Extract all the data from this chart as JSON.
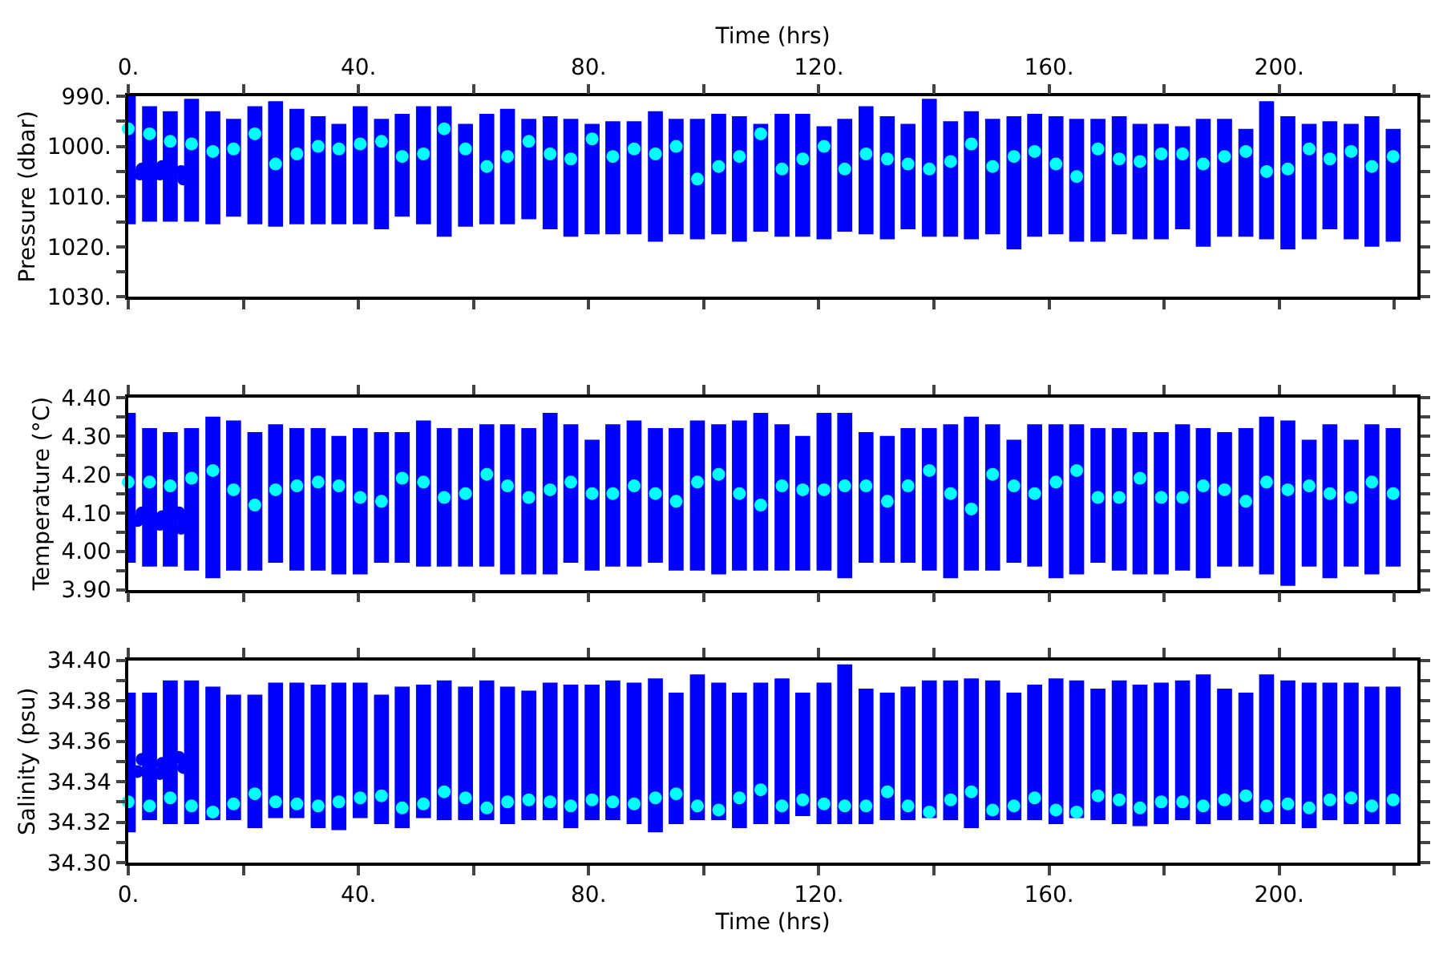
{
  "chart_data": [
    {
      "type": "bar",
      "xlabel": "Time (hrs)",
      "ylabel": "Pressure (dbar)",
      "marker": "circle",
      "xlim": [
        0,
        224
      ],
      "xticks": [
        {
          "value": 0,
          "label": "0."
        },
        {
          "value": 20,
          "label": null
        },
        {
          "value": 40,
          "label": "40."
        },
        {
          "value": 60,
          "label": null
        },
        {
          "value": 80,
          "label": "80."
        },
        {
          "value": 100,
          "label": null
        },
        {
          "value": 120,
          "label": "120."
        },
        {
          "value": 140,
          "label": null
        },
        {
          "value": 160,
          "label": "160."
        },
        {
          "value": 180,
          "label": null
        },
        {
          "value": 200,
          "label": "200."
        },
        {
          "value": 220,
          "label": null
        }
      ],
      "ylim": [
        1030,
        990
      ],
      "yticks": [
        {
          "value": 990,
          "label": "990."
        },
        {
          "value": 995,
          "label": null
        },
        {
          "value": 1000,
          "label": "1000."
        },
        {
          "value": 1005,
          "label": null
        },
        {
          "value": 1010,
          "label": "1010."
        },
        {
          "value": 1015,
          "label": null
        },
        {
          "value": 1020,
          "label": "1020."
        },
        {
          "value": 1025,
          "label": null
        },
        {
          "value": 1030,
          "label": "1030."
        }
      ],
      "x": [
        0,
        3.7,
        7.3,
        11,
        14.7,
        18.3,
        22,
        25.6,
        29.3,
        33,
        36.6,
        40.3,
        44,
        47.6,
        51.3,
        54.9,
        58.6,
        62.3,
        65.9,
        69.6,
        73.3,
        76.9,
        80.6,
        84.2,
        87.9,
        91.6,
        95.2,
        98.9,
        102.6,
        106.2,
        109.9,
        113.6,
        117.2,
        120.9,
        124.5,
        128.2,
        131.9,
        135.5,
        139.2,
        142.9,
        146.5,
        150.2,
        153.9,
        157.5,
        161.2,
        164.8,
        168.5,
        172.2,
        175.8,
        179.5,
        183.2,
        186.8,
        190.5,
        194.2,
        197.8,
        201.5,
        205.2,
        208.8,
        212.5,
        216.1,
        219.8
      ],
      "series": [
        {
          "color": "#0000ff",
          "base": [
            990,
            992,
            993,
            990.5,
            993,
            994.5,
            992,
            991,
            992.5,
            994,
            995.5,
            992,
            994.5,
            993.5,
            992,
            992,
            995.5,
            993.5,
            992.5,
            994.5,
            994,
            994.5,
            995.5,
            995,
            995,
            993,
            994.5,
            994.5,
            993.5,
            994,
            995.5,
            993.5,
            993.5,
            996,
            994.5,
            992,
            994,
            995.5,
            990.5,
            995,
            993,
            994.5,
            994,
            993.5,
            994,
            994.5,
            994.5,
            994,
            995.5,
            995.5,
            996,
            994.5,
            994.5,
            996.5,
            991,
            994,
            995.5,
            995,
            995.5,
            994,
            996.5
          ],
          "values": [
            25.5,
            23,
            22,
            24.5,
            22.5,
            19.5,
            23.5,
            25,
            23,
            21.5,
            20,
            23.5,
            22,
            20.5,
            23.5,
            26,
            20.5,
            22,
            23,
            20,
            22.5,
            23.5,
            22,
            22.5,
            22.5,
            26,
            23,
            24,
            24,
            25,
            21.5,
            24.5,
            24.5,
            22.5,
            22.5,
            25.5,
            24.5,
            21,
            27.5,
            23,
            25.5,
            23,
            26.5,
            24.5,
            23.5,
            24.5,
            24.5,
            23.5,
            23,
            23,
            20.5,
            25.5,
            23.5,
            21.5,
            27.5,
            26.5,
            23,
            21.5,
            23,
            26,
            22.5
          ]
        },
        {
          "type": "scatter",
          "color": "#00ffff",
          "values": [
            996.5,
            997.5,
            999,
            999.5,
            1001,
            1000.5,
            997.5,
            1003.5,
            1001.5,
            1000,
            1000.5,
            999.5,
            999,
            1002,
            1001.5,
            996.5,
            1000.5,
            1004,
            1002,
            999,
            1001.5,
            1002.5,
            998.5,
            1002,
            1000.5,
            1001.5,
            1000,
            1006.5,
            1004,
            1002,
            997.5,
            1004.5,
            1002.5,
            1000,
            1004.5,
            1001.5,
            1002.5,
            1003.5,
            1004.5,
            1003,
            999.5,
            1004,
            1002,
            1001,
            1003.5,
            1006,
            1000.5,
            1002.5,
            1003,
            1001.5,
            1001.5,
            1003.5,
            1002,
            1001,
            1005,
            1004.5,
            1000.5,
            1002.5,
            1001,
            1004,
            1002
          ]
        },
        {
          "type": "scatter",
          "color": "#0000ff",
          "x": [
            2.0,
            2.4,
            5.5,
            5.9,
            9.2,
            9.6
          ],
          "values": [
            1005.5,
            1004.5,
            1005.5,
            1004,
            1005,
            1006.5
          ]
        }
      ]
    },
    {
      "type": "bar",
      "ylabel": "Temperature (°C)",
      "marker": "circle",
      "tick_labels": "y",
      "xlim": [
        0,
        224
      ],
      "xticks": [
        {
          "value": 0,
          "label": null
        },
        {
          "value": 20,
          "label": null
        },
        {
          "value": 40,
          "label": null
        },
        {
          "value": 60,
          "label": null
        },
        {
          "value": 80,
          "label": null
        },
        {
          "value": 100,
          "label": null
        },
        {
          "value": 120,
          "label": null
        },
        {
          "value": 140,
          "label": null
        },
        {
          "value": 160,
          "label": null
        },
        {
          "value": 180,
          "label": null
        },
        {
          "value": 200,
          "label": null
        },
        {
          "value": 220,
          "label": null
        }
      ],
      "ylim": [
        3.9,
        4.4
      ],
      "yticks": [
        {
          "value": 3.9,
          "label": "3.90"
        },
        {
          "value": 3.95,
          "label": null
        },
        {
          "value": 4.0,
          "label": "4.00"
        },
        {
          "value": 4.05,
          "label": null
        },
        {
          "value": 4.1,
          "label": "4.10"
        },
        {
          "value": 4.15,
          "label": null
        },
        {
          "value": 4.2,
          "label": "4.20"
        },
        {
          "value": 4.25,
          "label": null
        },
        {
          "value": 4.3,
          "label": "4.30"
        },
        {
          "value": 4.35,
          "label": null
        },
        {
          "value": 4.4,
          "label": "4.40"
        }
      ],
      "x": [
        0,
        3.7,
        7.3,
        11,
        14.7,
        18.3,
        22,
        25.6,
        29.3,
        33,
        36.6,
        40.3,
        44,
        47.6,
        51.3,
        54.9,
        58.6,
        62.3,
        65.9,
        69.6,
        73.3,
        76.9,
        80.6,
        84.2,
        87.9,
        91.6,
        95.2,
        98.9,
        102.6,
        106.2,
        109.9,
        113.6,
        117.2,
        120.9,
        124.5,
        128.2,
        131.9,
        135.5,
        139.2,
        142.9,
        146.5,
        150.2,
        153.9,
        157.5,
        161.2,
        164.8,
        168.5,
        172.2,
        175.8,
        179.5,
        183.2,
        186.8,
        190.5,
        194.2,
        197.8,
        201.5,
        205.2,
        208.8,
        212.5,
        216.1,
        219.8
      ],
      "series": [
        {
          "color": "#0000ff",
          "base": [
            3.97,
            3.96,
            3.96,
            3.95,
            3.93,
            3.95,
            3.95,
            3.97,
            3.95,
            3.95,
            3.94,
            3.94,
            3.97,
            3.97,
            3.96,
            3.96,
            3.96,
            3.96,
            3.94,
            3.94,
            3.94,
            3.97,
            3.95,
            3.96,
            3.96,
            3.97,
            3.95,
            3.95,
            3.94,
            3.95,
            3.95,
            3.95,
            3.95,
            3.95,
            3.93,
            3.97,
            3.97,
            3.97,
            3.95,
            3.93,
            3.95,
            3.95,
            3.97,
            3.96,
            3.93,
            3.94,
            3.97,
            3.95,
            3.94,
            3.94,
            3.95,
            3.93,
            3.96,
            3.96,
            3.94,
            3.91,
            3.96,
            3.93,
            3.96,
            3.94,
            3.96
          ],
          "values": [
            0.39,
            0.36,
            0.35,
            0.37,
            0.42,
            0.39,
            0.36,
            0.36,
            0.37,
            0.37,
            0.36,
            0.38,
            0.34,
            0.34,
            0.38,
            0.36,
            0.36,
            0.37,
            0.39,
            0.38,
            0.42,
            0.36,
            0.34,
            0.37,
            0.38,
            0.35,
            0.37,
            0.39,
            0.39,
            0.39,
            0.41,
            0.38,
            0.35,
            0.41,
            0.43,
            0.34,
            0.33,
            0.35,
            0.37,
            0.4,
            0.4,
            0.38,
            0.32,
            0.37,
            0.4,
            0.39,
            0.35,
            0.37,
            0.37,
            0.37,
            0.38,
            0.39,
            0.35,
            0.36,
            0.41,
            0.43,
            0.33,
            0.4,
            0.33,
            0.39,
            0.36
          ]
        },
        {
          "type": "scatter",
          "color": "#00ffff",
          "values": [
            4.18,
            4.18,
            4.17,
            4.19,
            4.21,
            4.16,
            4.12,
            4.16,
            4.17,
            4.18,
            4.17,
            4.14,
            4.13,
            4.19,
            4.18,
            4.14,
            4.15,
            4.2,
            4.17,
            4.14,
            4.16,
            4.18,
            4.15,
            4.15,
            4.17,
            4.15,
            4.13,
            4.18,
            4.2,
            4.15,
            4.12,
            4.17,
            4.16,
            4.16,
            4.17,
            4.17,
            4.13,
            4.17,
            4.21,
            4.15,
            4.11,
            4.2,
            4.17,
            4.15,
            4.18,
            4.21,
            4.14,
            4.14,
            4.19,
            4.14,
            4.14,
            4.17,
            4.16,
            4.13,
            4.18,
            4.16,
            4.17,
            4.15,
            4.14,
            4.18,
            4.15
          ]
        },
        {
          "type": "scatter",
          "color": "#0000ff",
          "x": [
            1.6,
            2.4,
            5.5,
            5.9,
            8.8,
            9.2,
            9.6
          ],
          "values": [
            4.08,
            4.1,
            4.07,
            4.09,
            4.1,
            4.06,
            4.08
          ]
        }
      ]
    },
    {
      "type": "bar",
      "xlabel": "Time (hrs)",
      "ylabel": "Salinity (psu)",
      "marker": "circle",
      "xlim": [
        0,
        224
      ],
      "xticks": [
        {
          "value": 0,
          "label": "0."
        },
        {
          "value": 20,
          "label": null
        },
        {
          "value": 40,
          "label": "40."
        },
        {
          "value": 60,
          "label": null
        },
        {
          "value": 80,
          "label": "80."
        },
        {
          "value": 100,
          "label": null
        },
        {
          "value": 120,
          "label": "120."
        },
        {
          "value": 140,
          "label": null
        },
        {
          "value": 160,
          "label": "160."
        },
        {
          "value": 180,
          "label": null
        },
        {
          "value": 200,
          "label": "200."
        },
        {
          "value": 220,
          "label": null
        }
      ],
      "ylim": [
        34.3,
        34.4
      ],
      "yticks": [
        {
          "value": 34.3,
          "label": "34.30"
        },
        {
          "value": 34.31,
          "label": null
        },
        {
          "value": 34.32,
          "label": "34.32"
        },
        {
          "value": 34.33,
          "label": null
        },
        {
          "value": 34.34,
          "label": "34.34"
        },
        {
          "value": 34.35,
          "label": null
        },
        {
          "value": 34.36,
          "label": "34.36"
        },
        {
          "value": 34.37,
          "label": null
        },
        {
          "value": 34.38,
          "label": "34.38"
        },
        {
          "value": 34.39,
          "label": null
        },
        {
          "value": 34.4,
          "label": "34.40"
        }
      ],
      "x": [
        0,
        3.7,
        7.3,
        11,
        14.7,
        18.3,
        22,
        25.6,
        29.3,
        33,
        36.6,
        40.3,
        44,
        47.6,
        51.3,
        54.9,
        58.6,
        62.3,
        65.9,
        69.6,
        73.3,
        76.9,
        80.6,
        84.2,
        87.9,
        91.6,
        95.2,
        98.9,
        102.6,
        106.2,
        109.9,
        113.6,
        117.2,
        120.9,
        124.5,
        128.2,
        131.9,
        135.5,
        139.2,
        142.9,
        146.5,
        150.2,
        153.9,
        157.5,
        161.2,
        164.8,
        168.5,
        172.2,
        175.8,
        179.5,
        183.2,
        186.8,
        190.5,
        194.2,
        197.8,
        201.5,
        205.2,
        208.8,
        212.5,
        216.1,
        219.8
      ],
      "series": [
        {
          "color": "#0000ff",
          "base": [
            34.315,
            34.321,
            34.319,
            34.319,
            34.321,
            34.321,
            34.317,
            34.322,
            34.322,
            34.317,
            34.316,
            34.322,
            34.319,
            34.317,
            34.322,
            34.321,
            34.321,
            34.321,
            34.319,
            34.321,
            34.321,
            34.317,
            34.321,
            34.321,
            34.319,
            34.315,
            34.319,
            34.321,
            34.321,
            34.317,
            34.319,
            34.319,
            34.323,
            34.319,
            34.319,
            34.319,
            34.321,
            34.321,
            34.322,
            34.321,
            34.317,
            34.321,
            34.321,
            34.321,
            34.319,
            34.322,
            34.321,
            34.319,
            34.318,
            34.319,
            34.321,
            34.319,
            34.321,
            34.321,
            34.319,
            34.319,
            34.317,
            34.321,
            34.319,
            34.319,
            34.319
          ],
          "values": [
            0.069,
            0.063,
            0.071,
            0.071,
            0.066,
            0.062,
            0.066,
            0.067,
            0.067,
            0.071,
            0.073,
            0.067,
            0.064,
            0.07,
            0.066,
            0.069,
            0.066,
            0.069,
            0.068,
            0.064,
            0.068,
            0.071,
            0.067,
            0.069,
            0.07,
            0.076,
            0.065,
            0.072,
            0.068,
            0.067,
            0.07,
            0.072,
            0.061,
            0.07,
            0.079,
            0.067,
            0.063,
            0.066,
            0.068,
            0.069,
            0.074,
            0.069,
            0.063,
            0.067,
            0.072,
            0.068,
            0.065,
            0.071,
            0.07,
            0.07,
            0.069,
            0.074,
            0.065,
            0.063,
            0.074,
            0.071,
            0.072,
            0.068,
            0.07,
            0.068,
            0.068
          ]
        },
        {
          "type": "scatter",
          "color": "#00ffff",
          "values": [
            34.33,
            34.328,
            34.332,
            34.328,
            34.325,
            34.329,
            34.334,
            34.33,
            34.329,
            34.328,
            34.33,
            34.332,
            34.333,
            34.327,
            34.329,
            34.335,
            34.332,
            34.327,
            34.33,
            34.331,
            34.33,
            34.328,
            34.331,
            34.33,
            34.329,
            34.332,
            34.334,
            34.328,
            34.326,
            34.332,
            34.336,
            34.328,
            34.331,
            34.329,
            34.328,
            34.328,
            34.335,
            34.328,
            34.325,
            34.331,
            34.335,
            34.326,
            34.328,
            34.332,
            34.326,
            34.325,
            34.333,
            34.331,
            34.327,
            34.33,
            34.33,
            34.328,
            34.331,
            34.333,
            34.328,
            34.329,
            34.327,
            34.331,
            34.332,
            34.328,
            34.331
          ]
        },
        {
          "type": "scatter",
          "color": "#0000ff",
          "x": [
            1.6,
            2.4,
            5.5,
            5.9,
            8.8,
            9.6
          ],
          "values": [
            34.345,
            34.351,
            34.344,
            34.349,
            34.352,
            34.347
          ]
        }
      ]
    }
  ]
}
